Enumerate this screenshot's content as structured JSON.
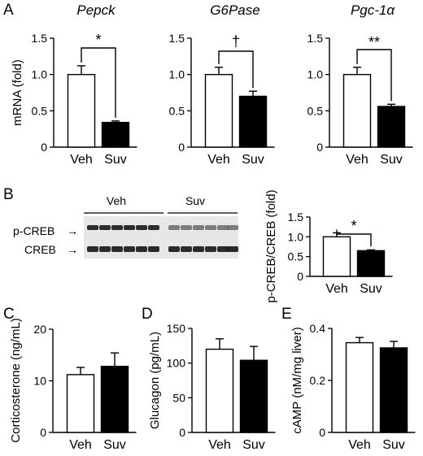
{
  "panel_labels": {
    "A": "A",
    "B": "B",
    "C": "C",
    "D": "D",
    "E": "E"
  },
  "colors": {
    "veh": "#ffffff",
    "suv": "#000000",
    "stroke": "#000000"
  },
  "blot": {
    "groups": [
      "Veh",
      "Suv"
    ],
    "rows": [
      "p-CREB",
      "CREB"
    ],
    "arrow_glyph": "→"
  },
  "chart_data": [
    {
      "id": "pepck",
      "panel": "A",
      "type": "bar",
      "title": "Pepck",
      "ylabel": "mRNA (fold)",
      "categories": [
        "Veh",
        "Suv"
      ],
      "values": [
        1.0,
        0.34
      ],
      "errors": [
        0.12,
        0.02
      ],
      "ylim": [
        0,
        1.5
      ],
      "yticks": [
        0,
        0.5,
        1.0,
        1.5
      ],
      "ytick_labels": [
        "0",
        "0.5",
        "1.0",
        "1.5"
      ],
      "annotation": "*"
    },
    {
      "id": "g6pase",
      "panel": "A",
      "type": "bar",
      "title": "G6Pase",
      "ylabel": "",
      "categories": [
        "Veh",
        "Suv"
      ],
      "values": [
        1.0,
        0.7
      ],
      "errors": [
        0.1,
        0.07
      ],
      "ylim": [
        0,
        1.5
      ],
      "yticks": [
        0,
        0.5,
        1.0,
        1.5
      ],
      "ytick_labels": [
        "0",
        "0.5",
        "1.0",
        "1.5"
      ],
      "annotation": "†"
    },
    {
      "id": "pgc1a",
      "panel": "A",
      "type": "bar",
      "title": "Pgc-1α",
      "ylabel": "",
      "categories": [
        "Veh",
        "Suv"
      ],
      "values": [
        1.0,
        0.56
      ],
      "errors": [
        0.1,
        0.03
      ],
      "ylim": [
        0,
        1.5
      ],
      "yticks": [
        0,
        0.5,
        1.0,
        1.5
      ],
      "ytick_labels": [
        "0",
        "0.5",
        "1.0",
        "1.5"
      ],
      "annotation": "**"
    },
    {
      "id": "pcreb",
      "panel": "B",
      "type": "bar",
      "title": "",
      "ylabel": "p-CREB/CREB (fold)",
      "categories": [
        "Veh",
        "Suv"
      ],
      "values": [
        1.0,
        0.65
      ],
      "errors": [
        0.1,
        0.02
      ],
      "ylim": [
        0,
        1.5
      ],
      "yticks": [
        0,
        0.5,
        1.0,
        1.5
      ],
      "ytick_labels": [
        "0",
        "0.5",
        "1.0",
        "1.5"
      ],
      "annotation": "*"
    },
    {
      "id": "cort",
      "panel": "C",
      "type": "bar",
      "title": "",
      "ylabel": "Corticosterone (ng/mL)",
      "categories": [
        "Veh",
        "Suv"
      ],
      "values": [
        11.2,
        12.8
      ],
      "errors": [
        1.4,
        2.6
      ],
      "ylim": [
        0,
        20
      ],
      "yticks": [
        0,
        10,
        20
      ],
      "ytick_labels": [
        "0",
        "10",
        "20"
      ],
      "annotation": ""
    },
    {
      "id": "gluc",
      "panel": "D",
      "type": "bar",
      "title": "",
      "ylabel": "Glucagon (pg/mL)",
      "categories": [
        "Veh",
        "Suv"
      ],
      "values": [
        120,
        104
      ],
      "errors": [
        15,
        20
      ],
      "ylim": [
        0,
        150
      ],
      "yticks": [
        0,
        50,
        100,
        150
      ],
      "ytick_labels": [
        "0",
        "50",
        "100",
        "150"
      ],
      "annotation": ""
    },
    {
      "id": "camp",
      "panel": "E",
      "type": "bar",
      "title": "",
      "ylabel": "cAMP (nM/mg liver)",
      "categories": [
        "Veh",
        "Suv"
      ],
      "values": [
        0.345,
        0.325
      ],
      "errors": [
        0.02,
        0.025
      ],
      "ylim": [
        0,
        0.4
      ],
      "yticks": [
        0,
        0.2,
        0.4
      ],
      "ytick_labels": [
        "0",
        "0.2",
        "0.4"
      ],
      "annotation": ""
    }
  ]
}
